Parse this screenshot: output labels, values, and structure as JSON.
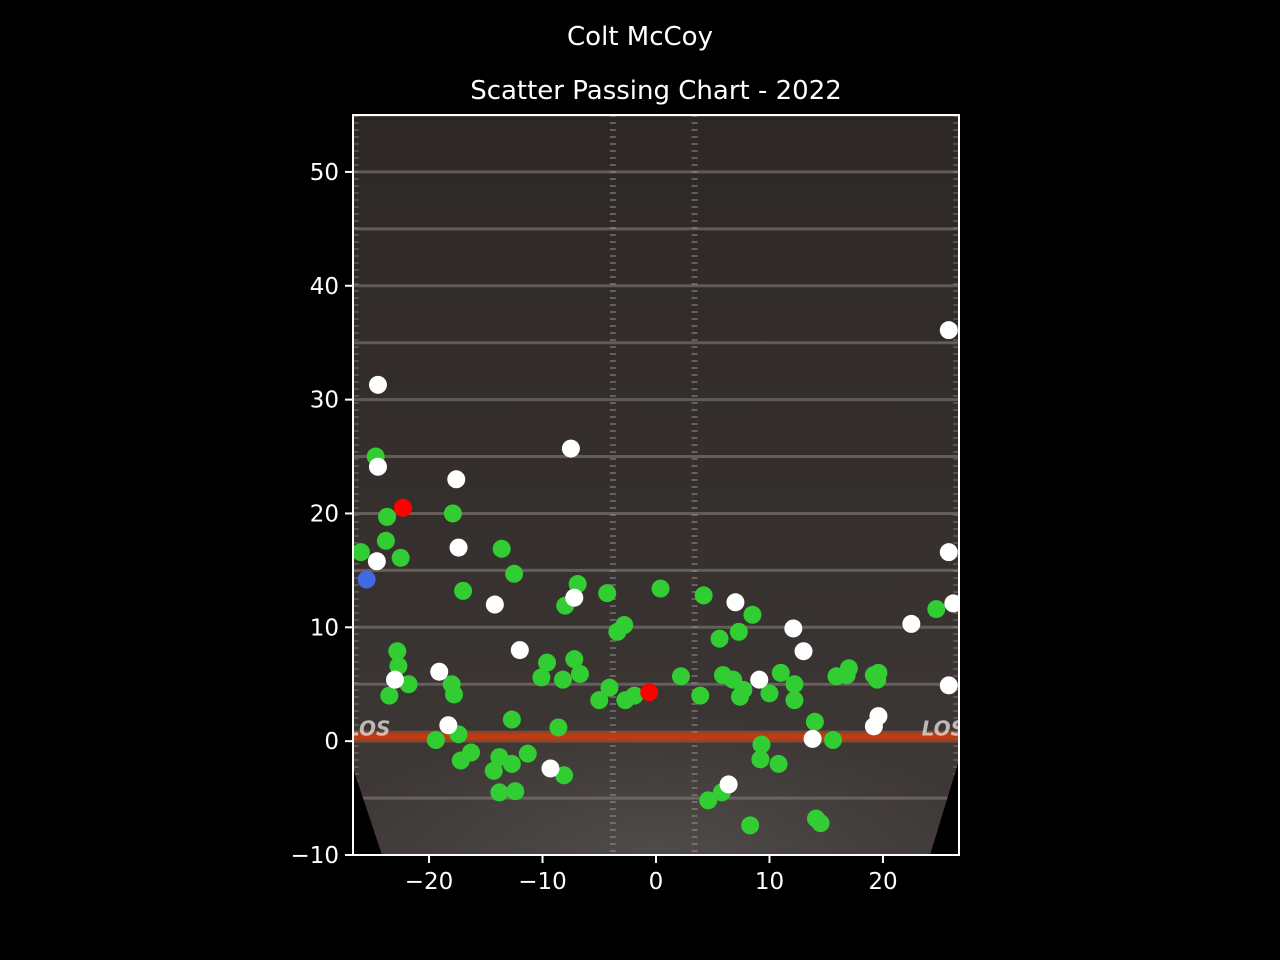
{
  "chart_data": {
    "type": "scatter",
    "title": "Colt McCoy",
    "subtitle": "Scatter Passing Chart - 2022",
    "xlabel": "",
    "ylabel": "",
    "xlim": [
      -26.7,
      26.7
    ],
    "ylim": [
      -10,
      55
    ],
    "xticks": [
      -20,
      -10,
      0,
      10,
      20
    ],
    "yticks": [
      -10,
      0,
      10,
      20,
      30,
      40,
      50
    ],
    "field_marking": "LOS",
    "grid": false,
    "colors": {
      "complete": "#32cd32",
      "incomplete": "#ffffff",
      "interception": "#ff0000",
      "touchdown": "#4169e1"
    },
    "series": [
      {
        "key": "complete",
        "points": [
          [
            -26.0,
            16.6
          ],
          [
            -24.7,
            25.0
          ],
          [
            -23.7,
            19.7
          ],
          [
            -23.8,
            17.6
          ],
          [
            -22.5,
            16.1
          ],
          [
            -22.8,
            7.9
          ],
          [
            -22.7,
            6.6
          ],
          [
            -23.5,
            4.0
          ],
          [
            -21.8,
            5.0
          ],
          [
            -19.4,
            0.1
          ],
          [
            -18.0,
            5.0
          ],
          [
            -17.8,
            4.1
          ],
          [
            -17.9,
            20.0
          ],
          [
            -17.0,
            13.2
          ],
          [
            -17.4,
            0.6
          ],
          [
            -17.2,
            -1.7
          ],
          [
            -16.3,
            -1.0
          ],
          [
            -14.3,
            -2.6
          ],
          [
            -13.8,
            -1.4
          ],
          [
            -13.8,
            -4.5
          ],
          [
            -12.7,
            -2.0
          ],
          [
            -12.7,
            1.9
          ],
          [
            -12.4,
            -4.4
          ],
          [
            -12.5,
            14.7
          ],
          [
            -13.6,
            16.9
          ],
          [
            -11.3,
            -1.1
          ],
          [
            -10.1,
            5.6
          ],
          [
            -9.6,
            6.9
          ],
          [
            -8.6,
            1.2
          ],
          [
            -8.0,
            11.9
          ],
          [
            -8.2,
            5.4
          ],
          [
            -8.1,
            -3.0
          ],
          [
            -7.2,
            7.2
          ],
          [
            -6.9,
            13.8
          ],
          [
            -6.7,
            5.9
          ],
          [
            -5.0,
            3.6
          ],
          [
            -4.1,
            4.7
          ],
          [
            -4.3,
            13.0
          ],
          [
            -3.4,
            9.6
          ],
          [
            -2.8,
            10.2
          ],
          [
            -2.7,
            3.6
          ],
          [
            -1.9,
            4.0
          ],
          [
            0.4,
            13.4
          ],
          [
            2.2,
            5.7
          ],
          [
            3.9,
            4.0
          ],
          [
            4.2,
            12.8
          ],
          [
            4.6,
            -5.2
          ],
          [
            5.8,
            -4.5
          ],
          [
            5.6,
            9.0
          ],
          [
            5.9,
            5.8
          ],
          [
            6.8,
            5.4
          ],
          [
            7.4,
            3.9
          ],
          [
            7.7,
            4.5
          ],
          [
            7.3,
            9.6
          ],
          [
            8.5,
            11.1
          ],
          [
            9.3,
            -0.3
          ],
          [
            9.2,
            -1.6
          ],
          [
            8.3,
            -7.4
          ],
          [
            10.0,
            4.2
          ],
          [
            10.8,
            -2.0
          ],
          [
            11.0,
            6.0
          ],
          [
            12.2,
            5.0
          ],
          [
            12.2,
            3.6
          ],
          [
            14.0,
            1.7
          ],
          [
            14.1,
            -6.8
          ],
          [
            14.5,
            -7.2
          ],
          [
            15.6,
            0.1
          ],
          [
            15.9,
            5.7
          ],
          [
            16.8,
            5.8
          ],
          [
            17.0,
            6.4
          ],
          [
            19.2,
            5.8
          ],
          [
            19.5,
            5.4
          ],
          [
            19.6,
            6.0
          ],
          [
            24.7,
            11.6
          ]
        ]
      },
      {
        "key": "incomplete",
        "points": [
          [
            -24.5,
            31.3
          ],
          [
            -24.5,
            24.1
          ],
          [
            -24.6,
            15.8
          ],
          [
            -23.0,
            5.4
          ],
          [
            -19.1,
            6.1
          ],
          [
            -18.3,
            1.4
          ],
          [
            -17.6,
            23.0
          ],
          [
            -17.4,
            17.0
          ],
          [
            -14.2,
            12.0
          ],
          [
            -12.0,
            8.0
          ],
          [
            -9.3,
            -2.4
          ],
          [
            -7.5,
            25.7
          ],
          [
            -7.2,
            12.6
          ],
          [
            6.4,
            -3.8
          ],
          [
            7.0,
            12.2
          ],
          [
            9.1,
            5.4
          ],
          [
            12.1,
            9.9
          ],
          [
            13.0,
            7.9
          ],
          [
            13.8,
            0.2
          ],
          [
            19.2,
            1.3
          ],
          [
            19.6,
            2.2
          ],
          [
            22.5,
            10.3
          ],
          [
            25.8,
            36.1
          ],
          [
            25.8,
            16.6
          ],
          [
            26.2,
            12.1
          ],
          [
            25.8,
            4.9
          ]
        ]
      },
      {
        "key": "interception",
        "points": [
          [
            -22.3,
            20.5
          ],
          [
            -0.6,
            4.3
          ]
        ]
      },
      {
        "key": "touchdown",
        "points": [
          [
            -25.5,
            14.2
          ]
        ]
      }
    ]
  }
}
